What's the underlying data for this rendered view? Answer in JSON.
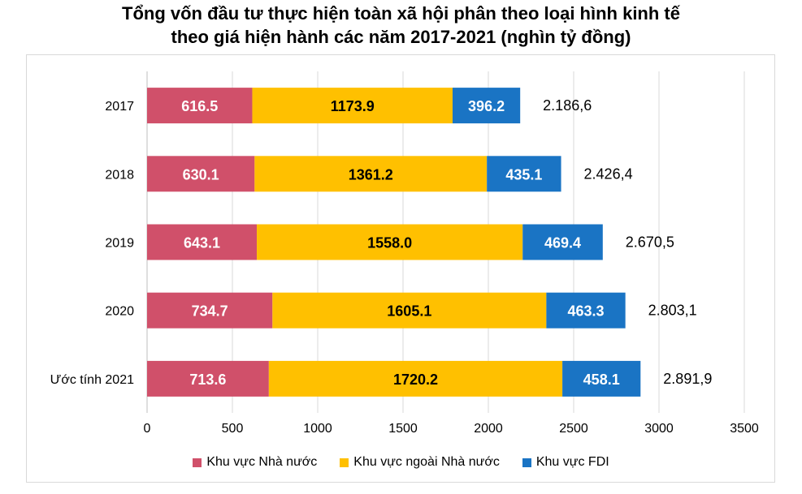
{
  "chart_data": {
    "type": "bar",
    "orientation": "horizontal",
    "stacked": true,
    "title_line1": "Tổng vốn đầu tư thực hiện toàn xã hội phân theo loại hình kinh tế",
    "title_line2": "theo giá hiện hành các năm 2017-2021 (nghìn tỷ đồng)",
    "categories": [
      "2017",
      "2018",
      "2019",
      "2020",
      "Ước tính 2021"
    ],
    "series": [
      {
        "name": "Khu vực Nhà nước",
        "color": "#d0506a",
        "values": [
          616.5,
          630.1,
          643.1,
          734.7,
          713.6
        ],
        "labels": [
          "616.5",
          "630.1",
          "643.1",
          "734.7",
          "713.6"
        ]
      },
      {
        "name": "Khu vực ngoài Nhà nước",
        "color": "#ffc000",
        "values": [
          1173.9,
          1361.2,
          1558.0,
          1605.1,
          1720.2
        ],
        "labels": [
          "1173.9",
          "1361.2",
          "1558.0",
          "1605.1",
          "1720.2"
        ]
      },
      {
        "name": "Khu vực FDI",
        "color": "#1a74c4",
        "values": [
          396.2,
          435.1,
          469.4,
          463.3,
          458.1
        ],
        "labels": [
          "396.2",
          "435.1",
          "469.4",
          "463.3",
          "458.1"
        ]
      }
    ],
    "totals": [
      "2.186,6",
      "2.426,4",
      "2.670,5",
      "2.803,1",
      "2.891,9"
    ],
    "xlim": [
      0,
      3500
    ],
    "xticks": [
      "0",
      "500",
      "1000",
      "1500",
      "2000",
      "2500",
      "3000",
      "3500"
    ],
    "grid": true,
    "legend_position": "bottom"
  }
}
